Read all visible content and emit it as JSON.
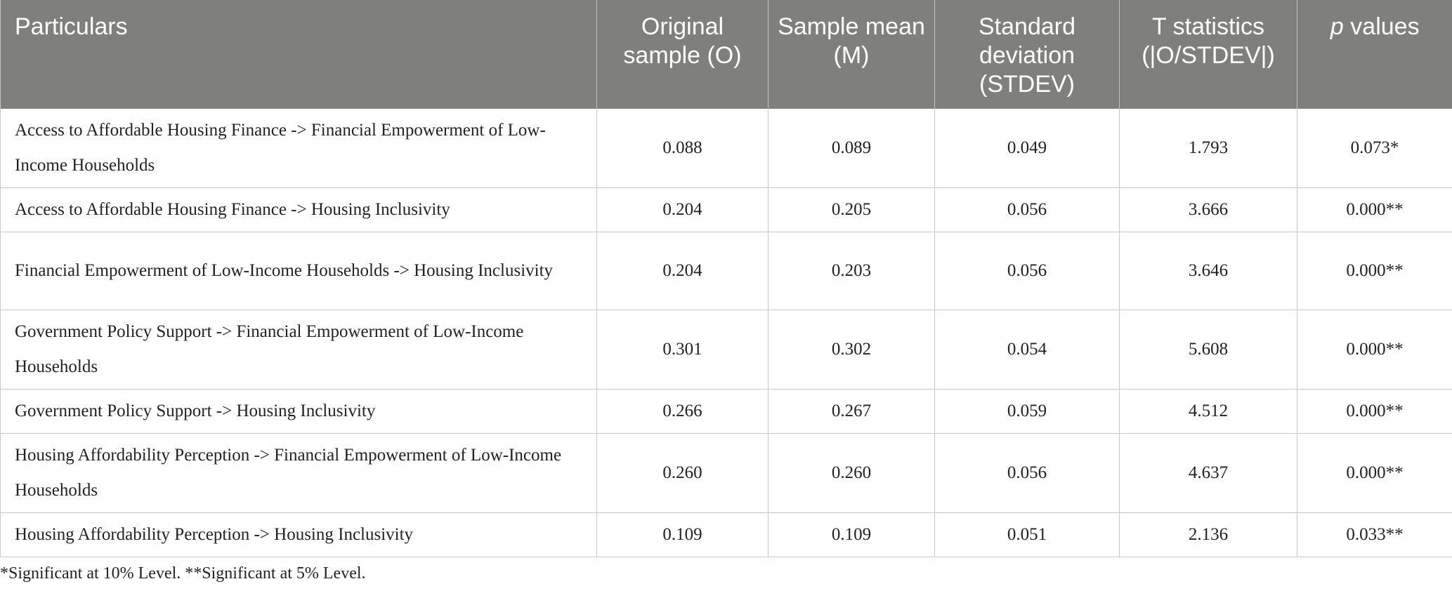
{
  "table": {
    "headers": {
      "particulars": "Particulars",
      "original": "Original sample (O)",
      "mean": "Sample mean (M)",
      "stdev": "Standard deviation (STDEV)",
      "tstat": "T statistics (|O/STDEV|)",
      "p_prefix": "p",
      "p_suffix": " values"
    },
    "rows": [
      {
        "particulars": "Access to Affordable Housing Finance -> Financial Empowerment of Low-Income Households",
        "original": "0.088",
        "mean": "0.089",
        "stdev": "0.049",
        "tstat": "1.793",
        "p": "0.073*"
      },
      {
        "particulars": "Access to Affordable Housing Finance -> Housing Inclusivity",
        "original": "0.204",
        "mean": "0.205",
        "stdev": "0.056",
        "tstat": "3.666",
        "p": "0.000**"
      },
      {
        "particulars": "Financial Empowerment of Low-Income Households -> Housing Inclusivity",
        "original": "0.204",
        "mean": "0.203",
        "stdev": "0.056",
        "tstat": "3.646",
        "p": "0.000**"
      },
      {
        "particulars": "Government Policy Support -> Financial Empowerment of Low-Income Households",
        "original": "0.301",
        "mean": "0.302",
        "stdev": "0.054",
        "tstat": "5.608",
        "p": "0.000**"
      },
      {
        "particulars": "Government Policy Support -> Housing Inclusivity",
        "original": "0.266",
        "mean": "0.267",
        "stdev": "0.059",
        "tstat": "4.512",
        "p": "0.000**"
      },
      {
        "particulars": "Housing Affordability Perception -> Financial Empowerment of Low-Income Households",
        "original": "0.260",
        "mean": "0.260",
        "stdev": "0.056",
        "tstat": "4.637",
        "p": "0.000**"
      },
      {
        "particulars": "Housing Affordability Perception -> Housing Inclusivity",
        "original": "0.109",
        "mean": "0.109",
        "stdev": "0.051",
        "tstat": "2.136",
        "p": "0.033**"
      }
    ]
  },
  "footnote": "*Significant at 10% Level. **Significant at 5% Level."
}
